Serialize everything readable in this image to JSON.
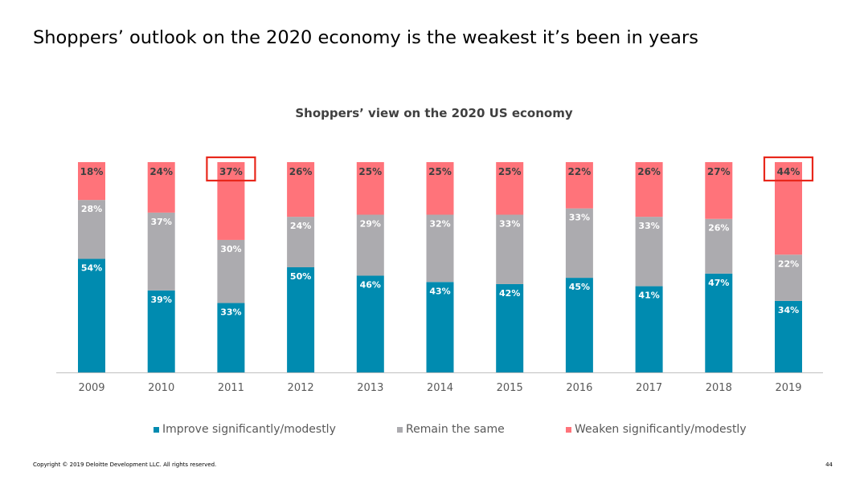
{
  "slide": {
    "title": "Shoppers’ outlook on the 2020 economy is the weakest it’s been in years",
    "copyright": "Copyright © 2019 Deloitte Development LLC. All rights reserved.",
    "page_number": "44"
  },
  "colors": {
    "improve": "#008BB0",
    "same": "#ACABAF",
    "weaken": "#FF737A",
    "highlight": "#E8271B"
  },
  "chart_data": {
    "type": "bar",
    "stacked": true,
    "title": "Shoppers’ view on the 2020 US economy",
    "categories": [
      "2009",
      "2010",
      "2011",
      "2012",
      "2013",
      "2014",
      "2015",
      "2016",
      "2017",
      "2018",
      "2019"
    ],
    "series": [
      {
        "name": "Improve significantly/modestly",
        "values": [
          54,
          39,
          33,
          50,
          46,
          43,
          42,
          45,
          41,
          47,
          34
        ]
      },
      {
        "name": "Remain the same",
        "values": [
          28,
          37,
          30,
          24,
          29,
          32,
          33,
          33,
          33,
          26,
          22
        ]
      },
      {
        "name": "Weaken significantly/modestly",
        "values": [
          18,
          24,
          37,
          26,
          25,
          25,
          25,
          22,
          26,
          27,
          44
        ]
      }
    ],
    "value_suffix": "%",
    "highlighted_labels": [
      {
        "category": "2011",
        "series": "Weaken significantly/modestly"
      },
      {
        "category": "2019",
        "series": "Weaken significantly/modestly"
      }
    ],
    "legend_position": "bottom",
    "ylim": [
      0,
      100
    ]
  }
}
